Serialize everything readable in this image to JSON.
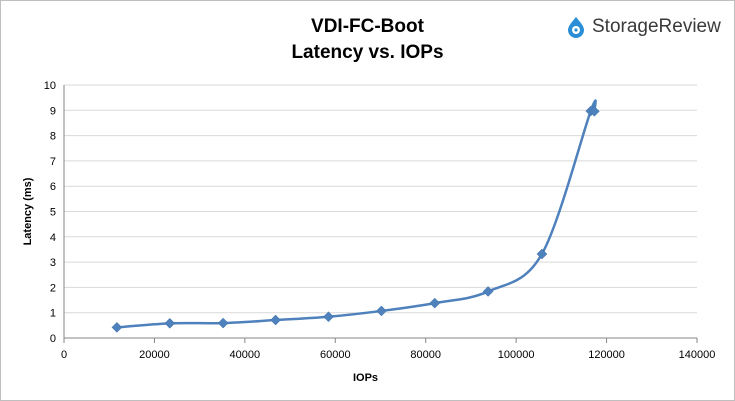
{
  "header": {
    "title_line1": "VDI-FC-Boot",
    "title_line2": "Latency vs. IOPs",
    "logo_text": "StorageReview",
    "logo_icon": "storagereview-logo-icon",
    "logo_color": "#2a8fd6"
  },
  "chart_data": {
    "type": "scatter",
    "title": "VDI-FC-Boot Latency vs. IOPs",
    "xlabel": "IOPs",
    "ylabel": "Latency (ms)",
    "xlim": [
      0,
      140000
    ],
    "ylim": [
      0,
      10
    ],
    "x_ticks": [
      "0",
      "20000",
      "40000",
      "60000",
      "80000",
      "100000",
      "120000",
      "140000"
    ],
    "y_ticks": [
      "0",
      "1",
      "2",
      "3",
      "4",
      "5",
      "6",
      "7",
      "8",
      "9",
      "10"
    ],
    "grid": true,
    "legend": "none",
    "smooth_line": true,
    "marker": "diamond",
    "series_color": "#4f81bd",
    "series": [
      {
        "x": [
          11700,
          23400,
          35200,
          46800,
          58500,
          70200,
          82000,
          93800,
          105700,
          116500,
          117300
        ],
        "y": [
          0.42,
          0.58,
          0.59,
          0.71,
          0.84,
          1.07,
          1.38,
          1.84,
          3.32,
          8.97,
          8.96
        ]
      }
    ]
  }
}
